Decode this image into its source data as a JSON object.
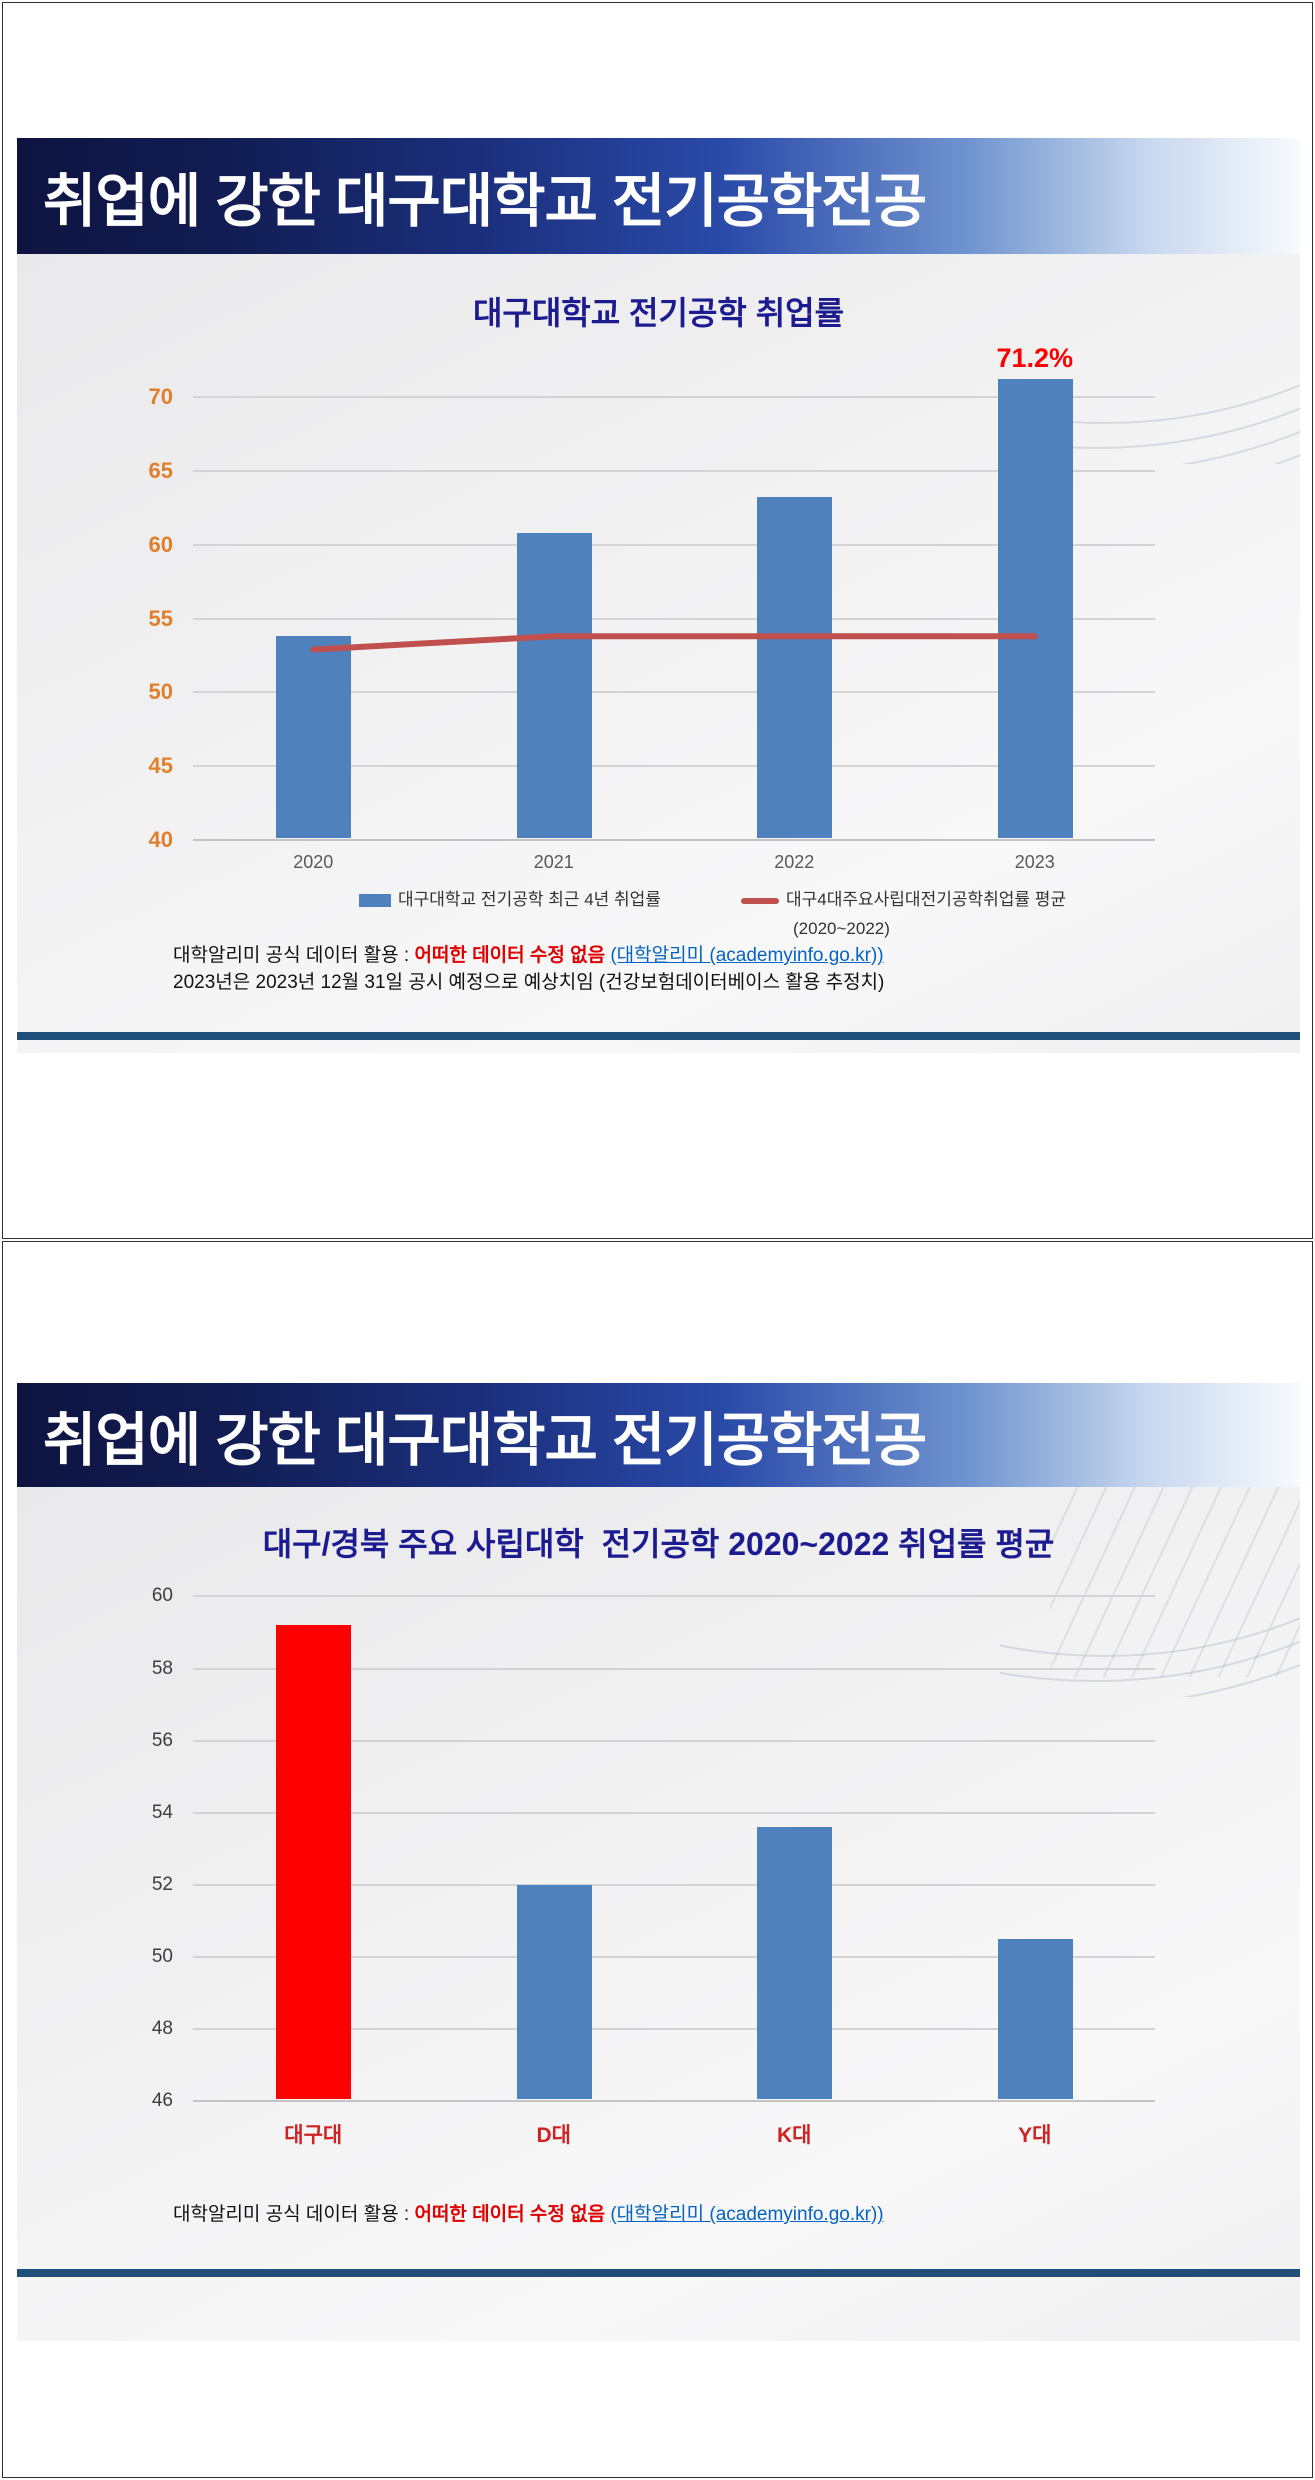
{
  "slide1": {
    "header_title": "취업에 강한 대구대학교 전기공학전공",
    "footnote": {
      "prefix": "대학알리미 공식 데이터 활용 : ",
      "highlight": "어떠한 데이터 수정 없음",
      "link": "(대학알리미 (academyinfo.go.kr))",
      "line2": "2023년은 2023년 12월 31일 공시 예정으로 예상치임 (건강보험데이터베이스 활용 추정치)"
    }
  },
  "slide2": {
    "header_title": "취업에 강한 대구대학교 전기공학전공",
    "footnote": {
      "prefix": "대학알리미 공식 데이터 활용 : ",
      "highlight": "어떠한 데이터 수정 없음",
      "link": "(대학알리미 (academyinfo.go.kr))"
    }
  },
  "colors": {
    "banner_navy": "#0d1440",
    "divider_navy": "#1f4e79",
    "bar_blue": "#4f81bd",
    "line_red": "#c0504d",
    "highlight_red": "#ff0000"
  },
  "chart_data": [
    {
      "type": "bar",
      "title": "대구대학교 전기공학 취업률",
      "categories": [
        "2020",
        "2021",
        "2022",
        "2023"
      ],
      "series": [
        {
          "name": "대구대학교 전기공학 최근 4년 취업률",
          "type": "bar",
          "values": [
            53.8,
            60.8,
            63.2,
            71.2
          ],
          "color": "#4f81bd"
        },
        {
          "name": "대구4대주요사립대전기공학취업률 평균",
          "name_line2": "(2020~2022)",
          "type": "line",
          "values": [
            52.9,
            53.8,
            53.8,
            53.8
          ],
          "color": "#c0504d"
        }
      ],
      "annotation": {
        "text": "71.2%",
        "category_index": 3,
        "color": "#ff0000"
      },
      "ylim": [
        40,
        72.1
      ],
      "yticks": [
        40,
        45,
        50,
        55,
        60,
        65,
        70
      ],
      "ytick_color": "#e07f2c",
      "xtick_color": "#595959",
      "grid": true,
      "legend_position": "bottom"
    },
    {
      "type": "bar",
      "title": "대구/경북 주요 사립대학  전기공학 2020~2022 취업률 평균",
      "categories": [
        "대구대",
        "D대",
        "K대",
        "Y대"
      ],
      "series": [
        {
          "type": "bar",
          "values": [
            59.2,
            52.0,
            53.6,
            50.5
          ],
          "color": "#4f81bd",
          "bar_colors": [
            "#ff0000",
            "#4f81bd",
            "#4f81bd",
            "#4f81bd"
          ]
        }
      ],
      "ylim": [
        46,
        60.4
      ],
      "yticks": [
        46,
        48,
        50,
        52,
        54,
        56,
        58,
        60
      ],
      "ytick_color": "#3d3d3d",
      "xtick_color": "#cf2222",
      "grid": true,
      "legend_position": "none"
    }
  ]
}
